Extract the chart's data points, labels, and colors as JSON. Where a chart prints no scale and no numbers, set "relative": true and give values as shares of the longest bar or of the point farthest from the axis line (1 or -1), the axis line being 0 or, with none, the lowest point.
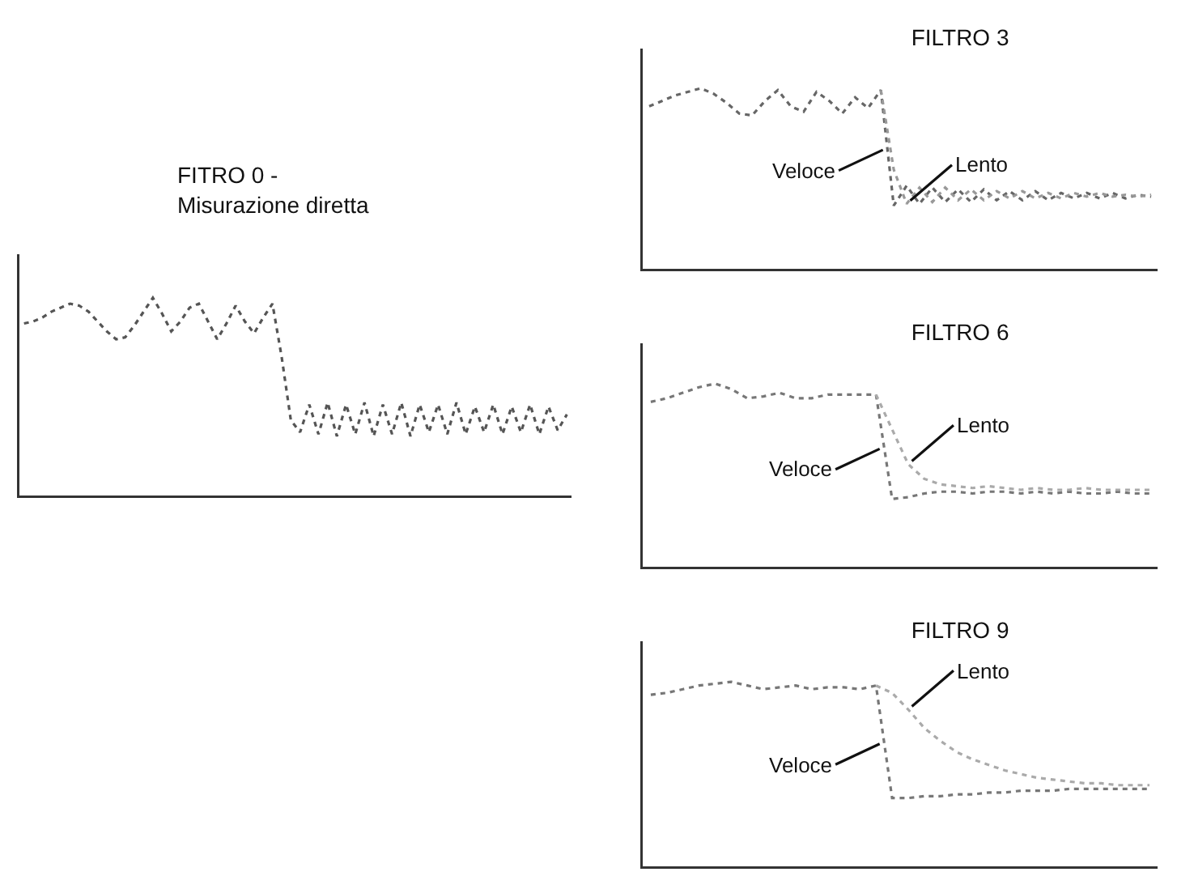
{
  "chart_data": [
    {
      "type": "line",
      "title": "FITRO 0 -",
      "subtitle": "Misurazione diretta",
      "relative": true,
      "line_style": "dotted",
      "categories": [
        null,
        null,
        null,
        null,
        null,
        null,
        null,
        null,
        null,
        null,
        null,
        null,
        null,
        null,
        null,
        null,
        null,
        null,
        null,
        null,
        null,
        null,
        null,
        null,
        null,
        null,
        null,
        null,
        null,
        null,
        null,
        null,
        null,
        null,
        null,
        null,
        null,
        null,
        null,
        null,
        null,
        null,
        null,
        null,
        null,
        null,
        null,
        null,
        null,
        null,
        null,
        null,
        null,
        null,
        null,
        null,
        null,
        null,
        null,
        null
      ],
      "series": [
        {
          "color": "#555555",
          "values": [
            0.87,
            0.88,
            0.9,
            0.93,
            0.95,
            0.97,
            0.96,
            0.93,
            0.88,
            0.83,
            0.79,
            0.8,
            0.86,
            0.93,
            1.0,
            0.92,
            0.83,
            0.88,
            0.95,
            0.97,
            0.88,
            0.79,
            0.87,
            0.96,
            0.88,
            0.82,
            0.9,
            0.97,
            0.7,
            0.38,
            0.32,
            0.46,
            0.31,
            0.47,
            0.3,
            0.46,
            0.31,
            0.47,
            0.3,
            0.46,
            0.31,
            0.47,
            0.3,
            0.46,
            0.32,
            0.46,
            0.31,
            0.47,
            0.31,
            0.45,
            0.32,
            0.46,
            0.31,
            0.45,
            0.32,
            0.46,
            0.31,
            0.45,
            0.33,
            0.41
          ]
        }
      ]
    },
    {
      "type": "line",
      "title": "FILTRO 3",
      "relative": true,
      "line_style": "dotted",
      "categories": [
        null,
        null,
        null,
        null,
        null,
        null,
        null,
        null,
        null,
        null,
        null,
        null,
        null,
        null,
        null,
        null,
        null,
        null,
        null,
        null,
        null,
        null,
        null,
        null,
        null,
        null,
        null,
        null,
        null,
        null,
        null,
        null,
        null,
        null,
        null,
        null,
        null,
        null,
        null,
        null
      ],
      "series": [
        {
          "name": "Veloce",
          "color": "#666666",
          "values": [
            0.9,
            0.93,
            0.96,
            0.98,
            1.0,
            0.97,
            0.92,
            0.86,
            0.85,
            0.93,
            0.99,
            0.9,
            0.87,
            0.98,
            0.93,
            0.86,
            0.95,
            0.89,
            0.99,
            0.35,
            0.46,
            0.36,
            0.45,
            0.37,
            0.44,
            0.37,
            0.44,
            0.38,
            0.43,
            0.38,
            0.43,
            0.38,
            0.42,
            0.39,
            0.42,
            0.39,
            0.42,
            0.39,
            0.41,
            0.4
          ]
        },
        {
          "name": "Lento",
          "color": "#999999",
          "values": [
            null,
            null,
            null,
            null,
            null,
            null,
            null,
            null,
            null,
            null,
            null,
            null,
            null,
            null,
            null,
            null,
            null,
            null,
            0.99,
            0.55,
            0.36,
            0.45,
            0.37,
            0.45,
            0.38,
            0.44,
            0.38,
            0.43,
            0.39,
            0.43,
            0.39,
            0.42,
            0.39,
            0.42,
            0.4,
            0.42,
            0.4,
            0.41,
            0.4,
            0.41
          ]
        }
      ]
    },
    {
      "type": "line",
      "title": "FILTRO 6",
      "relative": true,
      "line_style": "dotted",
      "categories": [
        null,
        null,
        null,
        null,
        null,
        null,
        null,
        null,
        null,
        null,
        null,
        null,
        null,
        null,
        null,
        null,
        null,
        null,
        null,
        null,
        null,
        null,
        null,
        null,
        null,
        null,
        null,
        null,
        null,
        null,
        null,
        null
      ],
      "series": [
        {
          "name": "Veloce",
          "color": "#777777",
          "values": [
            0.9,
            0.92,
            0.95,
            0.98,
            1.0,
            0.97,
            0.92,
            0.93,
            0.95,
            0.92,
            0.92,
            0.94,
            0.94,
            0.94,
            0.94,
            0.37,
            0.38,
            0.4,
            0.41,
            0.41,
            0.4,
            0.41,
            0.41,
            0.4,
            0.41,
            0.4,
            0.41,
            0.4,
            0.4,
            0.41,
            0.4,
            0.4
          ]
        },
        {
          "name": "Lento",
          "color": "#aaaaaa",
          "values": [
            null,
            null,
            null,
            null,
            null,
            null,
            null,
            null,
            null,
            null,
            null,
            null,
            null,
            null,
            0.94,
            0.75,
            0.56,
            0.48,
            0.45,
            0.44,
            0.43,
            0.44,
            0.43,
            0.42,
            0.43,
            0.42,
            0.42,
            0.43,
            0.42,
            0.42,
            0.42,
            0.42
          ]
        }
      ]
    },
    {
      "type": "line",
      "title": "FILTRO 9",
      "relative": true,
      "line_style": "dotted",
      "categories": [
        null,
        null,
        null,
        null,
        null,
        null,
        null,
        null,
        null,
        null,
        null,
        null,
        null,
        null,
        null,
        null,
        null,
        null,
        null,
        null,
        null,
        null,
        null,
        null,
        null,
        null,
        null,
        null,
        null,
        null,
        null,
        null
      ],
      "series": [
        {
          "name": "Veloce",
          "color": "#777777",
          "values": [
            0.93,
            0.94,
            0.96,
            0.98,
            0.99,
            1.0,
            0.98,
            0.96,
            0.97,
            0.98,
            0.96,
            0.97,
            0.97,
            0.96,
            0.98,
            0.37,
            0.37,
            0.38,
            0.38,
            0.39,
            0.39,
            0.4,
            0.4,
            0.41,
            0.41,
            0.41,
            0.42,
            0.42,
            0.42,
            0.42,
            0.42,
            0.42
          ]
        },
        {
          "name": "Lento",
          "color": "#aaaaaa",
          "values": [
            null,
            null,
            null,
            null,
            null,
            null,
            null,
            null,
            null,
            null,
            null,
            null,
            null,
            null,
            0.98,
            0.94,
            0.85,
            0.75,
            0.68,
            0.62,
            0.58,
            0.55,
            0.52,
            0.5,
            0.48,
            0.47,
            0.46,
            0.45,
            0.45,
            0.44,
            0.44,
            0.44
          ]
        }
      ]
    }
  ]
}
